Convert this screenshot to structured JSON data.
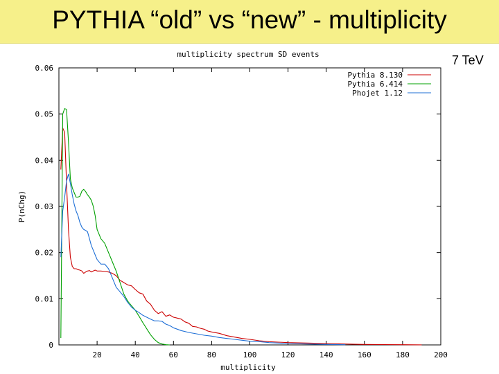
{
  "slide": {
    "title": "PYTHIA “old” vs “new” - multiplicity",
    "energy_label": "7 TeV"
  },
  "chart_data": {
    "type": "line",
    "title": "multiplicity spectrum SD events",
    "xlabel": "multiplicity",
    "ylabel": "P(nChg)",
    "xlim": [
      0,
      200
    ],
    "ylim": [
      0,
      0.06
    ],
    "x_ticks": [
      20,
      40,
      60,
      80,
      100,
      120,
      140,
      160,
      180,
      200
    ],
    "y_ticks": [
      0,
      0.01,
      0.02,
      0.03,
      0.04,
      0.05,
      0.06
    ],
    "y_tick_labels": [
      "0",
      "0.01",
      "0.02",
      "0.03",
      "0.04",
      "0.05",
      "0.06"
    ],
    "grid": false,
    "legend_position": "top-right",
    "series": [
      {
        "name": "Pythia 8.130",
        "color": "#cc0000",
        "points": [
          [
            1,
            0.038
          ],
          [
            2,
            0.047
          ],
          [
            3,
            0.046
          ],
          [
            4,
            0.035
          ],
          [
            5,
            0.025
          ],
          [
            6,
            0.019
          ],
          [
            7,
            0.017
          ],
          [
            8,
            0.0165
          ],
          [
            9,
            0.0165
          ],
          [
            10,
            0.0163
          ],
          [
            11,
            0.0162
          ],
          [
            12,
            0.016
          ],
          [
            13,
            0.0155
          ],
          [
            14,
            0.0158
          ],
          [
            15,
            0.016
          ],
          [
            16,
            0.0161
          ],
          [
            17,
            0.0158
          ],
          [
            18,
            0.016
          ],
          [
            19,
            0.0162
          ],
          [
            20,
            0.016
          ],
          [
            22,
            0.016
          ],
          [
            24,
            0.0159
          ],
          [
            26,
            0.0158
          ],
          [
            28,
            0.0155
          ],
          [
            30,
            0.015
          ],
          [
            32,
            0.014
          ],
          [
            34,
            0.0135
          ],
          [
            36,
            0.013
          ],
          [
            38,
            0.0128
          ],
          [
            40,
            0.012
          ],
          [
            42,
            0.0113
          ],
          [
            44,
            0.011
          ],
          [
            46,
            0.0095
          ],
          [
            48,
            0.0088
          ],
          [
            50,
            0.0075
          ],
          [
            52,
            0.0068
          ],
          [
            54,
            0.0072
          ],
          [
            56,
            0.0062
          ],
          [
            58,
            0.0065
          ],
          [
            60,
            0.006
          ],
          [
            62,
            0.0058
          ],
          [
            64,
            0.0056
          ],
          [
            66,
            0.005
          ],
          [
            68,
            0.0047
          ],
          [
            70,
            0.004
          ],
          [
            72,
            0.0039
          ],
          [
            74,
            0.0036
          ],
          [
            76,
            0.0034
          ],
          [
            78,
            0.003
          ],
          [
            80,
            0.0028
          ],
          [
            84,
            0.0025
          ],
          [
            88,
            0.002
          ],
          [
            92,
            0.0017
          ],
          [
            96,
            0.0014
          ],
          [
            100,
            0.0012
          ],
          [
            105,
            0.0009
          ],
          [
            110,
            0.0007
          ],
          [
            115,
            0.0006
          ],
          [
            120,
            0.0005
          ],
          [
            130,
            0.0004
          ],
          [
            140,
            0.0003
          ],
          [
            150,
            0.0002
          ],
          [
            160,
            0.0001
          ],
          [
            170,
            8e-05
          ],
          [
            180,
            4e-05
          ],
          [
            190,
            2e-05
          ]
        ]
      },
      {
        "name": "Pythia 6.414",
        "color": "#00a000",
        "points": [
          [
            1,
            0.0015
          ],
          [
            2,
            0.05
          ],
          [
            3,
            0.0512
          ],
          [
            4,
            0.051
          ],
          [
            5,
            0.044
          ],
          [
            6,
            0.036
          ],
          [
            7,
            0.034
          ],
          [
            8,
            0.033
          ],
          [
            9,
            0.032
          ],
          [
            10,
            0.032
          ],
          [
            11,
            0.0322
          ],
          [
            12,
            0.0333
          ],
          [
            13,
            0.0337
          ],
          [
            14,
            0.0332
          ],
          [
            15,
            0.0325
          ],
          [
            16,
            0.032
          ],
          [
            17,
            0.0313
          ],
          [
            18,
            0.03
          ],
          [
            19,
            0.028
          ],
          [
            20,
            0.025
          ],
          [
            22,
            0.023
          ],
          [
            24,
            0.022
          ],
          [
            26,
            0.02
          ],
          [
            28,
            0.018
          ],
          [
            30,
            0.016
          ],
          [
            32,
            0.0135
          ],
          [
            34,
            0.011
          ],
          [
            36,
            0.0095
          ],
          [
            38,
            0.0085
          ],
          [
            40,
            0.0075
          ],
          [
            42,
            0.0062
          ],
          [
            44,
            0.0048
          ],
          [
            46,
            0.0035
          ],
          [
            48,
            0.0022
          ],
          [
            50,
            0.0012
          ],
          [
            52,
            0.0005
          ],
          [
            54,
            0.0002
          ],
          [
            56,
            5e-05
          ],
          [
            58,
            0.0
          ]
        ]
      },
      {
        "name": "Phojet 1.12",
        "color": "#1e6fd6",
        "points": [
          [
            1,
            0.019
          ],
          [
            2,
            0.029
          ],
          [
            3,
            0.032
          ],
          [
            4,
            0.0355
          ],
          [
            5,
            0.037
          ],
          [
            6,
            0.035
          ],
          [
            7,
            0.0325
          ],
          [
            8,
            0.0305
          ],
          [
            9,
            0.029
          ],
          [
            10,
            0.028
          ],
          [
            11,
            0.0265
          ],
          [
            12,
            0.0255
          ],
          [
            13,
            0.025
          ],
          [
            14,
            0.0248
          ],
          [
            15,
            0.0245
          ],
          [
            16,
            0.023
          ],
          [
            17,
            0.0215
          ],
          [
            18,
            0.0205
          ],
          [
            19,
            0.0195
          ],
          [
            20,
            0.0185
          ],
          [
            22,
            0.0175
          ],
          [
            24,
            0.0175
          ],
          [
            26,
            0.0165
          ],
          [
            28,
            0.0145
          ],
          [
            30,
            0.0125
          ],
          [
            32,
            0.0115
          ],
          [
            34,
            0.0105
          ],
          [
            36,
            0.0092
          ],
          [
            38,
            0.0082
          ],
          [
            40,
            0.0075
          ],
          [
            42,
            0.007
          ],
          [
            44,
            0.0064
          ],
          [
            46,
            0.006
          ],
          [
            48,
            0.0056
          ],
          [
            50,
            0.0052
          ],
          [
            52,
            0.0052
          ],
          [
            54,
            0.0051
          ],
          [
            56,
            0.0045
          ],
          [
            58,
            0.0042
          ],
          [
            60,
            0.0037
          ],
          [
            64,
            0.0031
          ],
          [
            68,
            0.0027
          ],
          [
            72,
            0.0024
          ],
          [
            76,
            0.0021
          ],
          [
            80,
            0.0019
          ],
          [
            84,
            0.0016
          ],
          [
            88,
            0.0014
          ],
          [
            92,
            0.0012
          ],
          [
            96,
            0.001
          ],
          [
            100,
            0.0008
          ],
          [
            105,
            0.0007
          ],
          [
            110,
            0.0005
          ],
          [
            115,
            0.0004
          ],
          [
            120,
            0.0003
          ],
          [
            130,
            0.0002
          ],
          [
            140,
            0.0001
          ],
          [
            150,
            5e-05
          ]
        ]
      }
    ]
  }
}
